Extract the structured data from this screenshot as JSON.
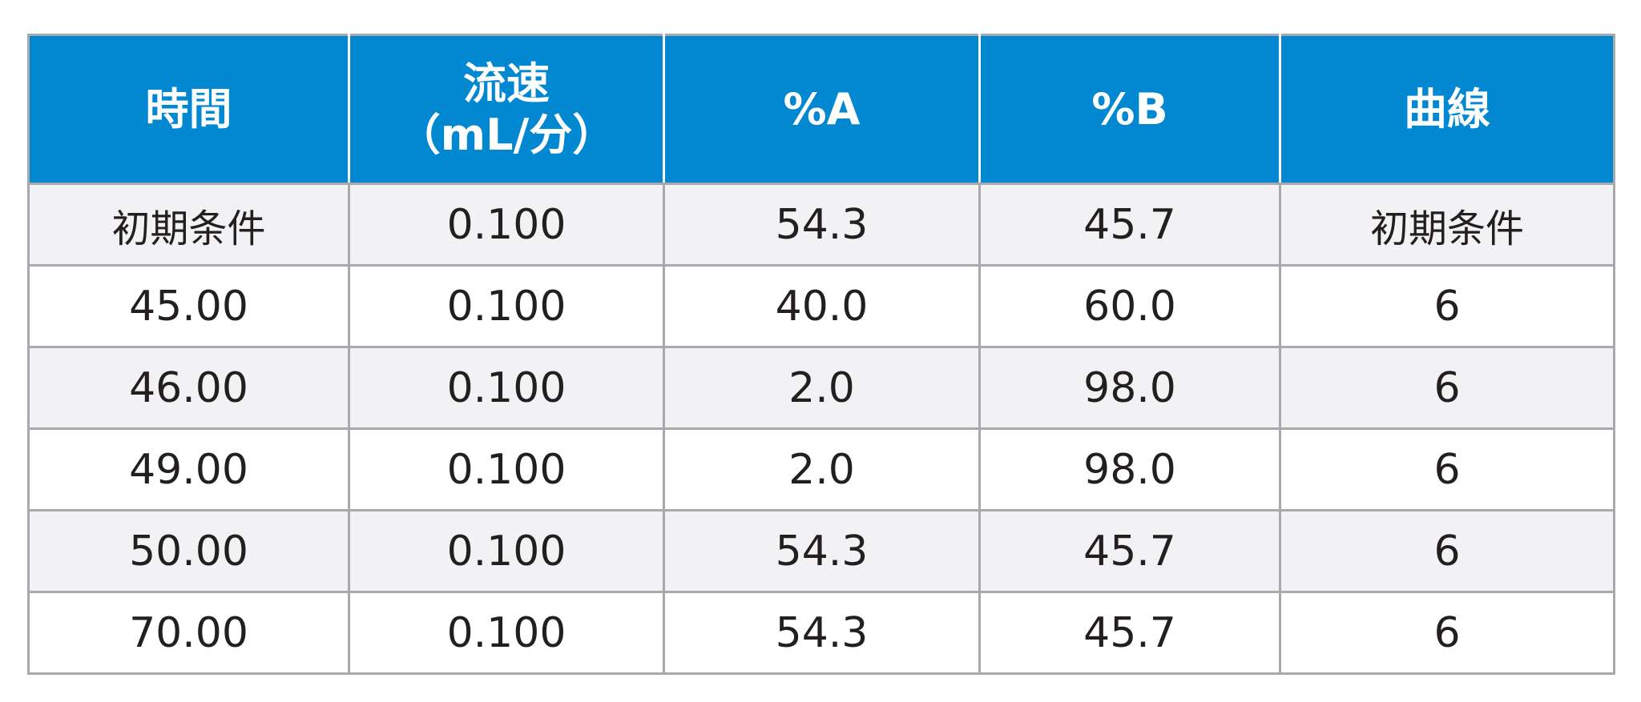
{
  "table": {
    "headers": [
      {
        "line1": "時間",
        "line2": ""
      },
      {
        "line1": "流速",
        "line2": "（mL/分）"
      },
      {
        "line1": "%A",
        "line2": ""
      },
      {
        "line1": "%B",
        "line2": ""
      },
      {
        "line1": "曲線",
        "line2": ""
      }
    ],
    "rows": [
      [
        "初期条件",
        "0.100",
        "54.3",
        "45.7",
        "初期条件"
      ],
      [
        "45.00",
        "0.100",
        "40.0",
        "60.0",
        "6"
      ],
      [
        "46.00",
        "0.100",
        "2.0",
        "98.0",
        "6"
      ],
      [
        "49.00",
        "0.100",
        "2.0",
        "98.0",
        "6"
      ],
      [
        "50.00",
        "0.100",
        "54.3",
        "45.7",
        "6"
      ],
      [
        "70.00",
        "0.100",
        "54.3",
        "45.7",
        "6"
      ]
    ]
  },
  "colors": {
    "header_bg": "#0288d1",
    "header_text": "#ffffff",
    "row_shaded_bg": "#f2f2f4",
    "row_plain_bg": "#ffffff",
    "border": "#a7a9ac",
    "body_text": "#231f20"
  }
}
